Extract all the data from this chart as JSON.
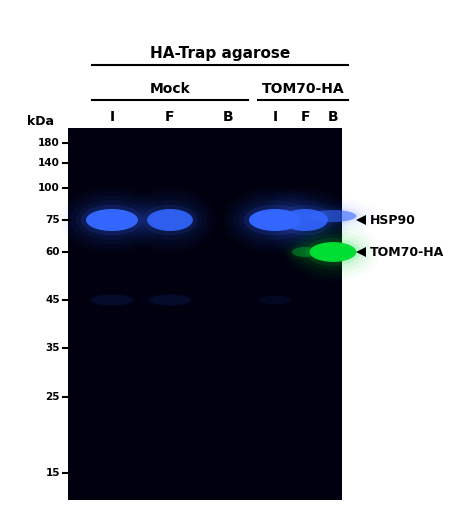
{
  "figure_width": 4.71,
  "figure_height": 5.24,
  "dpi": 100,
  "bg_color": "#ffffff",
  "gel_bg": "#00000f",
  "title": "HA-Trap agarose",
  "mock_label": "Mock",
  "tom70_label": "TOM70-HA",
  "lane_labels": [
    "I",
    "F",
    "B",
    "I",
    "F",
    "B"
  ],
  "kda_label": "kDa",
  "mw_marks": [
    "180",
    "140",
    "100",
    "75",
    "60",
    "45",
    "35",
    "25",
    "15"
  ],
  "hsp90_label": "HSP90",
  "tom70ha_label": "TOM70-HA",
  "blue_color": "#3366ff",
  "blue_core": "#5599ff",
  "green_color": "#00dd33",
  "green_core": "#33ff55",
  "bg_dark_blue": "#000820"
}
